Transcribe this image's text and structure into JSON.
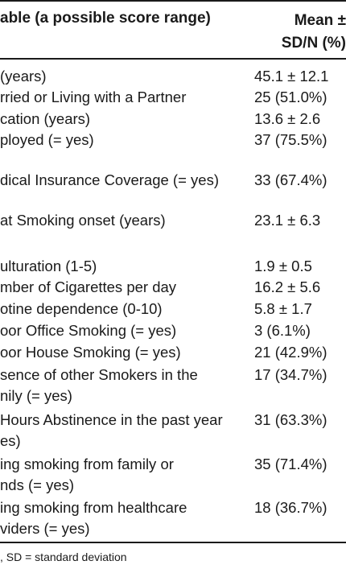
{
  "header": {
    "variable": "able (a possible score range)",
    "mean_line1": "Mean ±",
    "mean_line2": "SD/N (%)"
  },
  "rows": [
    {
      "variable": [
        "(years)"
      ],
      "value": "45.1 ± 12.1"
    },
    {
      "variable": [
        "rried or Living with a Partner"
      ],
      "value": "25 (51.0%)"
    },
    {
      "variable": [
        "cation (years)"
      ],
      "value": "13.6 ± 2.6"
    },
    {
      "variable": [
        "ployed (= yes)"
      ],
      "value": "37 (75.5%)"
    },
    {
      "variable": [
        "dical Insurance Coverage (= yes)"
      ],
      "value": "33 (67.4%)"
    },
    {
      "variable": [
        "at Smoking onset (years)"
      ],
      "value": "23.1 ± 6.3"
    },
    {
      "variable": [
        "ulturation (1-5)"
      ],
      "value": "1.9 ± 0.5"
    },
    {
      "variable": [
        "mber of Cigarettes per day"
      ],
      "value": "16.2 ± 5.6"
    },
    {
      "variable": [
        "otine dependence (0-10)"
      ],
      "value": "5.8 ± 1.7"
    },
    {
      "variable": [
        "oor Office Smoking (= yes)"
      ],
      "value": "3 (6.1%)"
    },
    {
      "variable": [
        "oor House Smoking (= yes)"
      ],
      "value": "21 (42.9%)"
    },
    {
      "variable": [
        "sence of other Smokers in the",
        "nily (= yes)"
      ],
      "value": "17 (34.7%)"
    },
    {
      "variable": [
        "Hours Abstinence in the past year",
        "es)"
      ],
      "value": "31 (63.3%)"
    },
    {
      "variable": [
        "ing smoking from family or",
        "nds (= yes)"
      ],
      "value": "35 (71.4%)"
    },
    {
      "variable": [
        "ing smoking from healthcare",
        "viders (= yes)"
      ],
      "value": "18 (36.7%)"
    }
  ],
  "footnote": ", SD = standard deviation"
}
